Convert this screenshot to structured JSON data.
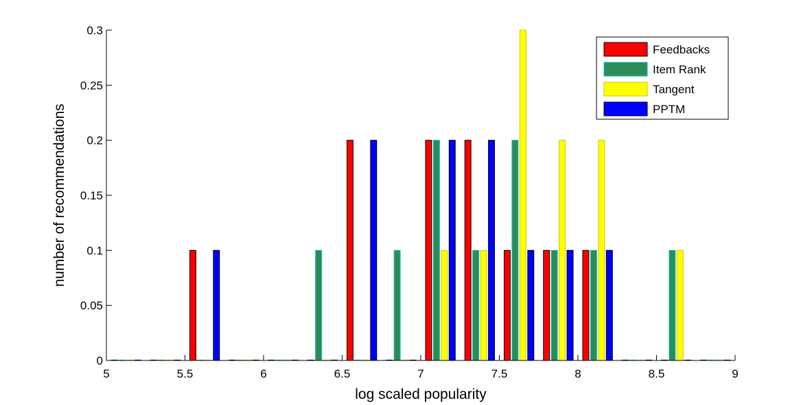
{
  "chart_data": {
    "type": "bar",
    "title": "",
    "xlabel": "log scaled popularity",
    "ylabel": "number of recommendations",
    "xlim": [
      5,
      9
    ],
    "ylim": [
      0,
      0.3
    ],
    "x_ticks": [
      "5",
      "5.5",
      "6",
      "6.5",
      "7",
      "7.5",
      "8",
      "8.5",
      "9"
    ],
    "y_ticks": [
      "0",
      "0.05",
      "0.1",
      "0.15",
      "0.2",
      "0.25",
      "0.3"
    ],
    "grid": false,
    "legend_position": "top-right",
    "bin_centers": [
      5.125,
      5.375,
      5.625,
      5.875,
      6.125,
      6.375,
      6.625,
      6.875,
      7.125,
      7.375,
      7.625,
      7.875,
      8.125,
      8.375,
      8.625,
      8.875
    ],
    "series": [
      {
        "name": "Feedbacks",
        "color": "#ff0000",
        "edge": "#000000",
        "values": [
          0,
          0,
          0.1,
          0,
          0,
          0,
          0.2,
          0,
          0.2,
          0.2,
          0.1,
          0.1,
          0.1,
          0,
          0,
          0
        ]
      },
      {
        "name": "Item Rank",
        "color": "#2e8b57",
        "edge": "#00c0c0",
        "values": [
          0,
          0,
          0,
          0,
          0,
          0.1,
          0,
          0.1,
          0.2,
          0.1,
          0.2,
          0.1,
          0.1,
          0,
          0.1,
          0
        ]
      },
      {
        "name": "Tangent",
        "color": "#ffff00",
        "edge": "#c8c800",
        "values": [
          0,
          0,
          0,
          0,
          0,
          0,
          0,
          0,
          0.1,
          0.1,
          0.3,
          0.2,
          0.2,
          0,
          0.1,
          0
        ]
      },
      {
        "name": "PPTM",
        "color": "#0000ff",
        "edge": "#000000",
        "values": [
          0,
          0,
          0.1,
          0,
          0,
          0,
          0.2,
          0,
          0.2,
          0.2,
          0.1,
          0.1,
          0.1,
          0,
          0,
          0
        ]
      }
    ]
  }
}
